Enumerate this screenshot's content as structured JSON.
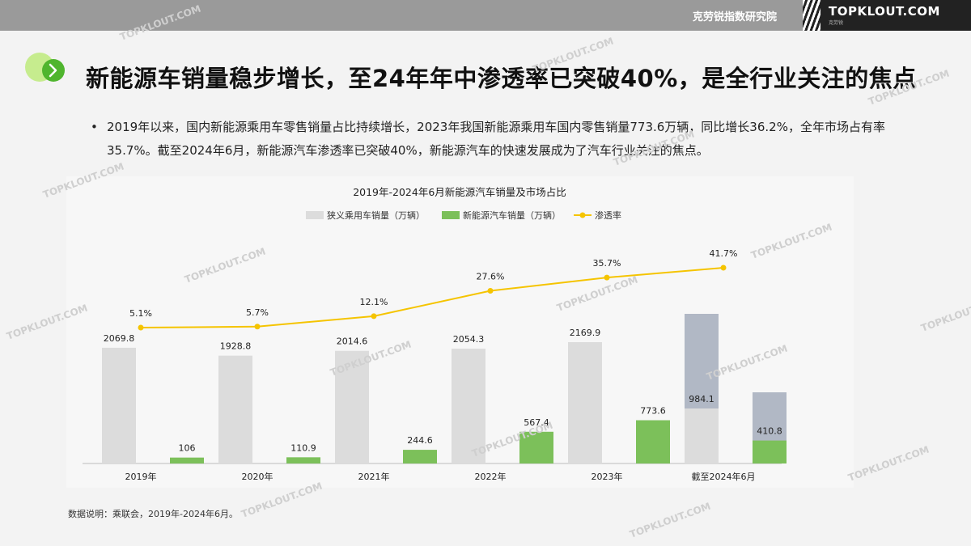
{
  "header": {
    "institute": "克劳锐指数研究院",
    "logo": "TOPKLOUT.COM",
    "logo_sub": "克劳锐",
    "watermark": "TOPKLOUT.COM"
  },
  "page_title": "新能源车销量稳步增长，至24年年中渗透率已突破40%，是全行业关注的焦点",
  "bullet": {
    "marker": "•",
    "text": "2019年以来，国内新能源乘用车零售销量占比持续增长，2023年我国新能源乘用车国内零售销量773.6万辆，同比增长36.2%，全年市场占有率35.7%。截至2024年6月，新能源汽车渗透率已突破40%，新能源汽车的快速发展成为了汽车行业关注的焦点。"
  },
  "source_note": "数据说明：乘联会，2019年-2024年6月。",
  "chart_data": {
    "type": "bar",
    "title": "2019年-2024年6月新能源汽车销量及市场占比",
    "categories": [
      "2019年",
      "2020年",
      "2021年",
      "2022年",
      "2023年",
      "截至2024年6月"
    ],
    "series": [
      {
        "name": "狭义乘用车销量（万辆）",
        "type": "bar",
        "color": "#dcdcdc",
        "values": [
          2069.8,
          1928.8,
          2014.6,
          2054.3,
          2169.9,
          984.1
        ],
        "labels": [
          "2069.8",
          "1928.8",
          "2014.6",
          "2054.3",
          "2169.9",
          "984.1"
        ]
      },
      {
        "name": "新能源汽车销量（万辆）",
        "type": "bar",
        "color": "#7cc05a",
        "values": [
          106,
          110.9,
          244.6,
          567.4,
          773.6,
          410.8
        ],
        "labels": [
          "106",
          "110.9",
          "244.6",
          "567.4",
          "773.6",
          "410.8"
        ]
      },
      {
        "name": "渗透率",
        "type": "line",
        "color": "#f5c400",
        "values": [
          5.1,
          5.7,
          12.1,
          27.6,
          35.7,
          41.7
        ],
        "labels": [
          "5.1%",
          "5.7%",
          "12.1%",
          "27.6%",
          "35.7%",
          "41.7%"
        ]
      }
    ],
    "highlight_color": "#a9b0bf",
    "legend_position": "top",
    "grid": false
  }
}
